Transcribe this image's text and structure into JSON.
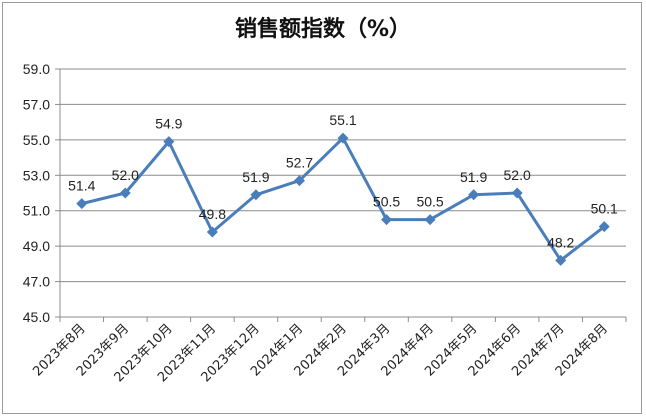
{
  "chart_data": {
    "type": "line",
    "title": "销售额指数（%）",
    "xlabel": "",
    "ylabel": "",
    "ylim": [
      45.0,
      59.0
    ],
    "yticks": [
      "45.0",
      "47.0",
      "49.0",
      "51.0",
      "53.0",
      "55.0",
      "57.0",
      "59.0"
    ],
    "grid": true,
    "categories": [
      "2023年8月",
      "2023年9月",
      "2023年10月",
      "2023年11月",
      "2023年12月",
      "2024年1月",
      "2024年2月",
      "2024年3月",
      "2024年4月",
      "2024年5月",
      "2024年6月",
      "2024年7月",
      "2024年8月"
    ],
    "series": [
      {
        "values": [
          51.4,
          52.0,
          54.9,
          49.8,
          51.9,
          52.7,
          55.1,
          50.5,
          50.5,
          51.9,
          52.0,
          48.2,
          50.1
        ],
        "labels": [
          "51.4",
          "52.0",
          "54.9",
          "49.8",
          "51.9",
          "52.7",
          "55.1",
          "50.5",
          "50.5",
          "51.9",
          "52.0",
          "48.2",
          "50.1"
        ],
        "color": "#4a7ebb"
      }
    ],
    "colors": {
      "line": "#4a7ebb",
      "grid": "#8c8c8c",
      "axis": "#8c8c8c"
    }
  }
}
